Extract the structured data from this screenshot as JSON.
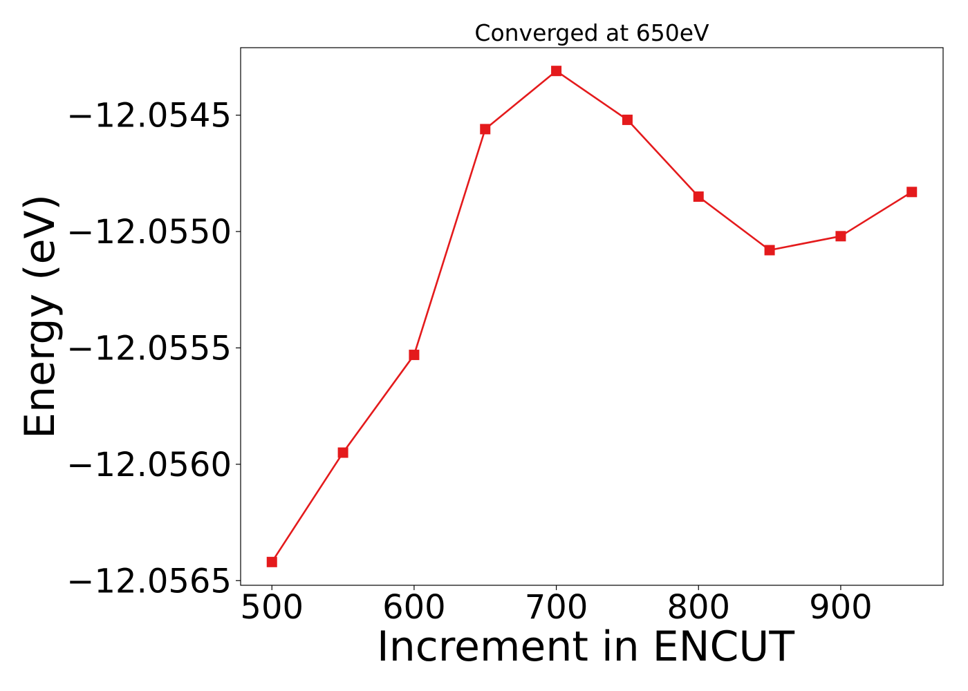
{
  "chart_data": {
    "type": "line",
    "title": "Converged at 650eV",
    "xlabel": "Increment in ENCUT",
    "ylabel": "Energy (eV)",
    "x": [
      500,
      550,
      600,
      650,
      700,
      750,
      800,
      850,
      900,
      950
    ],
    "series": [
      {
        "values": [
          -12.05642,
          -12.05595,
          -12.05553,
          -12.05456,
          -12.05431,
          -12.05452,
          -12.05485,
          -12.05508,
          -12.05502,
          -12.05483
        ],
        "color": "#e41a1c",
        "marker": "square"
      }
    ],
    "xticks": [
      500,
      600,
      700,
      800,
      900
    ],
    "xtick_labels": [
      "500",
      "600",
      "700",
      "800",
      "900"
    ],
    "yticks": [
      -12.0565,
      -12.056,
      -12.0555,
      -12.055,
      -12.0545
    ],
    "ytick_labels": [
      "−12.0565",
      "−12.0560",
      "−12.0555",
      "−12.0550",
      "−12.0545"
    ],
    "xlim": [
      478,
      972
    ],
    "ylim": [
      -12.05652,
      -12.05421
    ],
    "grid": false,
    "legend": "none"
  }
}
